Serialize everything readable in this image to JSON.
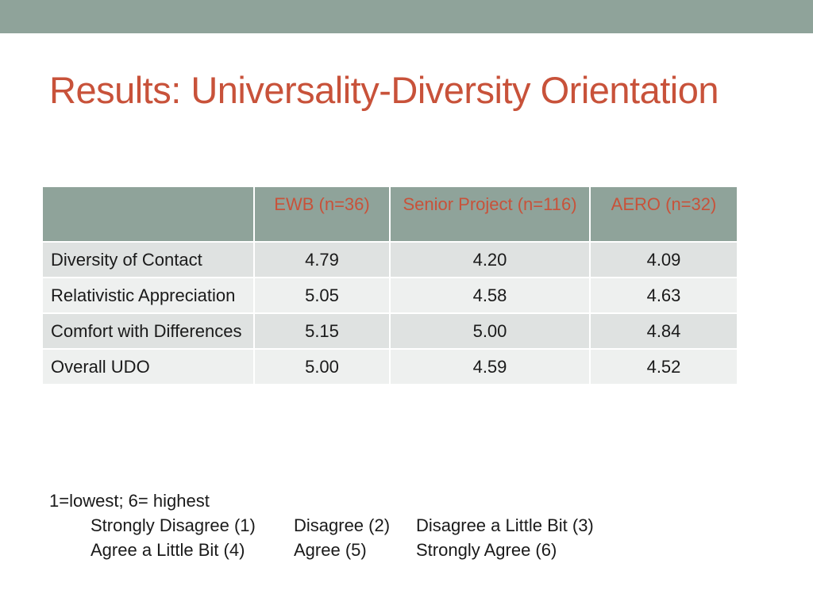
{
  "slide": {
    "title": "Results: Universality-Diversity Orientation"
  },
  "table": {
    "header": [
      "",
      "EWB (n=36)",
      "Senior Project (n=116)",
      "AERO (n=32)"
    ],
    "rows": [
      {
        "label": "Diversity of Contact",
        "values": [
          "4.79",
          "4.20",
          "4.09"
        ]
      },
      {
        "label": "Relativistic Appreciation",
        "values": [
          "5.05",
          "4.58",
          "4.63"
        ]
      },
      {
        "label": "Comfort with Differences",
        "values": [
          "5.15",
          "5.00",
          "4.84"
        ]
      },
      {
        "label": "Overall UDO",
        "values": [
          "5.00",
          "4.59",
          "4.52"
        ]
      }
    ]
  },
  "legend": {
    "range": "1=lowest; 6= highest",
    "scale_row1": [
      "Strongly Disagree (1)",
      "Disagree (2)",
      "Disagree a Little Bit (3)"
    ],
    "scale_row2": [
      "Agree a Little Bit (4)",
      "Agree (5)",
      "Strongly Agree (6)"
    ]
  },
  "colors": {
    "accent": "#c8523a",
    "band": "#8fa39a",
    "row_dark": "#dfe2e1",
    "row_light": "#eef0ef"
  }
}
